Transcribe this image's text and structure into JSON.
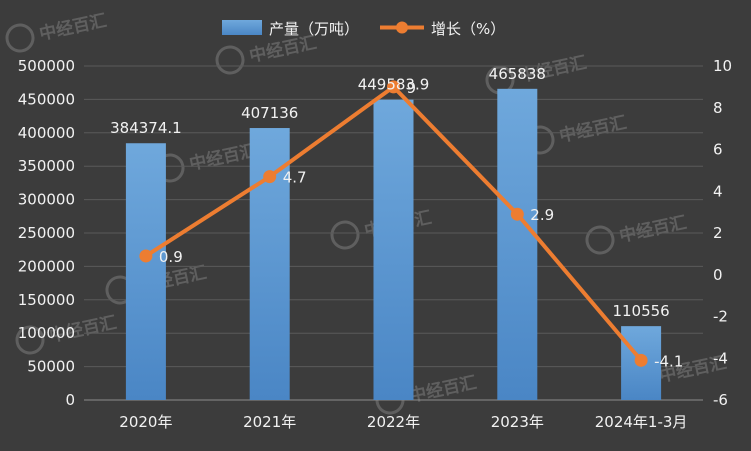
{
  "chart_data": {
    "type": "bar+line",
    "categories": [
      "2020年",
      "2021年",
      "2022年",
      "2023年",
      "2024年1-3月"
    ],
    "series": [
      {
        "name": "产量（万吨）",
        "type": "bar",
        "axis": "left",
        "values": [
          384374.1,
          407136,
          449583.9,
          465838,
          110556
        ],
        "labels": [
          "384374.1",
          "407136",
          "449583.9",
          "465838",
          "110556"
        ],
        "color": "#5b9bd5"
      },
      {
        "name": "增长（%）",
        "type": "line",
        "axis": "right",
        "values": [
          0.9,
          4.7,
          9,
          2.9,
          -4.1
        ],
        "labels": [
          "0.9",
          "4.7",
          "9",
          "2.9",
          "-4.1"
        ],
        "color": "#ed7d31"
      }
    ],
    "y_left": {
      "lim": [
        0,
        500000
      ],
      "ticks": [
        "0",
        "50000",
        "100000",
        "150000",
        "200000",
        "250000",
        "300000",
        "350000",
        "400000",
        "450000",
        "500000"
      ]
    },
    "y_right": {
      "lim": [
        -6,
        10
      ],
      "ticks": [
        "-6",
        "-4",
        "-2",
        "0",
        "2",
        "4",
        "6",
        "8",
        "10"
      ]
    },
    "grid": true,
    "legend": "top-center",
    "watermark": "中经百汇"
  }
}
